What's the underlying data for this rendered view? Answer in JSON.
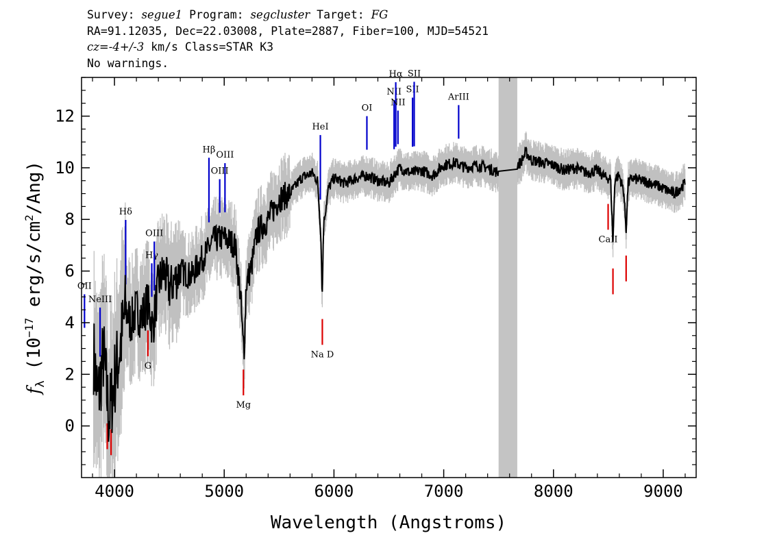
{
  "header": {
    "survey_label": "Survey:",
    "survey": "segue1",
    "program_label": "Program:",
    "program": "segcluster",
    "target_label": "Target:",
    "target": "FG",
    "line2": "RA=91.12035, Dec=22.03008, Plate=2887, Fiber=100, MJD=54521",
    "cz_label": "cz=",
    "cz_value": "-4+/-3",
    "cz_unit": "km/s",
    "class_text": "Class=STAR K3",
    "warnings": "No warnings."
  },
  "chart_data": {
    "type": "line",
    "xlabel": "Wavelength (Angstroms)",
    "ylabel_parts": {
      "f": "f",
      "sub": "λ",
      "pre": " (10",
      "exp": "−17",
      "mid": " erg/s/cm",
      "exp2": "2",
      "post": "/Ang)"
    },
    "xlim": [
      3700,
      9300
    ],
    "ylim": [
      -2,
      13.5
    ],
    "x_ticks": [
      "4000",
      "5000",
      "6000",
      "7000",
      "8000",
      "9000"
    ],
    "y_ticks": [
      "0",
      "2",
      "4",
      "6",
      "8",
      "10",
      "12"
    ],
    "masked_region": [
      7500,
      7670
    ],
    "series": [
      {
        "color": "#000000",
        "x": [
          3810,
          3850,
          3900,
          3950,
          4000,
          4050,
          4100,
          4150,
          4200,
          4250,
          4300,
          4350,
          4400,
          4450,
          4500,
          4600,
          4700,
          4800,
          4850,
          4900,
          5000,
          5100,
          5150,
          5170,
          5183,
          5200,
          5250,
          5300,
          5400,
          5500,
          5600,
          5700,
          5800,
          5850,
          5880,
          5893,
          5905,
          5950,
          6000,
          6100,
          6200,
          6300,
          6400,
          6500,
          6560,
          6600,
          6700,
          6800,
          6900,
          7000,
          7100,
          7200,
          7300,
          7400,
          7500,
          7660,
          7700,
          7750,
          7800,
          7900,
          8000,
          8100,
          8200,
          8300,
          8400,
          8480,
          8520,
          8542,
          8560,
          8600,
          8640,
          8662,
          8680,
          8720,
          8800,
          8900,
          9000,
          9100,
          9200
        ],
        "values": [
          2.8,
          1.0,
          2.8,
          0.3,
          1.8,
          3.0,
          4.5,
          4.0,
          4.5,
          4.2,
          4.8,
          3.8,
          5.5,
          6.0,
          5.3,
          6.0,
          5.8,
          6.5,
          6.8,
          7.2,
          7.3,
          7.0,
          5.0,
          3.3,
          3.0,
          5.5,
          6.2,
          7.5,
          8.0,
          8.8,
          9.0,
          9.6,
          9.8,
          9.5,
          7.5,
          4.9,
          7.8,
          9.2,
          9.6,
          9.4,
          9.6,
          9.7,
          9.5,
          9.4,
          9.8,
          10.0,
          9.8,
          9.9,
          9.7,
          10.1,
          10.2,
          10.0,
          10.1,
          10.0,
          9.8,
          10.1,
          10.2,
          10.6,
          10.3,
          10.2,
          10.1,
          9.9,
          10.0,
          9.8,
          9.9,
          9.6,
          9.6,
          7.1,
          9.6,
          9.7,
          9.1,
          7.6,
          9.4,
          9.6,
          9.5,
          9.4,
          9.2,
          9.0,
          9.4
        ]
      }
    ],
    "lines": [
      {
        "label": "OII",
        "x": 3727,
        "side": "emission"
      },
      {
        "label": "NeIII",
        "x": 3869,
        "side": "emission"
      },
      {
        "label": "Hδ",
        "x": 4102,
        "side": "emission"
      },
      {
        "label": "Hγ",
        "x": 4340,
        "side": "emission"
      },
      {
        "label": "OIII",
        "x": 4363,
        "side": "emission"
      },
      {
        "label": "Hβ",
        "x": 4861,
        "side": "emission"
      },
      {
        "label": "OIII",
        "x": 4959,
        "side": "emission"
      },
      {
        "label": "OIII",
        "x": 5007,
        "side": "emission"
      },
      {
        "label": "HeI",
        "x": 5876,
        "side": "emission"
      },
      {
        "label": "OI",
        "x": 6300,
        "side": "emission"
      },
      {
        "label": "NII",
        "x": 6548,
        "side": "emission"
      },
      {
        "label": "Hα",
        "x": 6563,
        "side": "emission"
      },
      {
        "label": "NII",
        "x": 6583,
        "side": "emission"
      },
      {
        "label": "SII",
        "x": 6716,
        "side": "emission"
      },
      {
        "label": "SII",
        "x": 6731,
        "side": "emission"
      },
      {
        "label": "ArIII",
        "x": 7136,
        "side": "emission"
      },
      {
        "label": "",
        "x": 3934,
        "side": "absorption"
      },
      {
        "label": "",
        "x": 3969,
        "side": "absorption"
      },
      {
        "label": "G",
        "x": 4305,
        "side": "absorption"
      },
      {
        "label": "Mg",
        "x": 5175,
        "side": "absorption"
      },
      {
        "label": "Na D",
        "x": 5894,
        "side": "absorption"
      },
      {
        "label": "CaII",
        "x": 8498,
        "side": "absorption"
      },
      {
        "label": "",
        "x": 8542,
        "side": "absorption"
      },
      {
        "label": "",
        "x": 8662,
        "side": "absorption"
      }
    ],
    "colors": {
      "spectrum": "#000000",
      "error_band": "#c0c0c0",
      "emission_marker": "#0000cc",
      "absorption_marker": "#dd0000",
      "mask": "#c4c4c4"
    }
  }
}
